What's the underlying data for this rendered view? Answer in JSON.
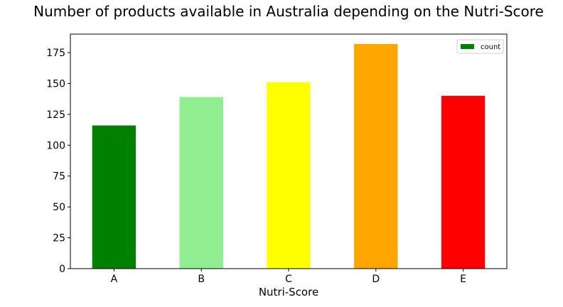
{
  "chart_data": {
    "type": "bar",
    "title": "Number of products available in Australia depending on the Nutri-Score",
    "xlabel": "Nutri-Score",
    "ylabel": "",
    "categories": [
      "A",
      "B",
      "C",
      "D",
      "E"
    ],
    "series": [
      {
        "name": "count",
        "values": [
          116,
          139,
          151,
          182,
          140
        ],
        "colors": [
          "#008000",
          "#90ee90",
          "#ffff00",
          "#ffa500",
          "#ff0000"
        ]
      }
    ],
    "ylim": [
      0,
      190
    ],
    "yticks": [
      0,
      25,
      50,
      75,
      100,
      125,
      150,
      175
    ],
    "grid": false,
    "legend": {
      "placement": "top-right",
      "entries": [
        "count"
      ],
      "swatch_color": "#008000"
    }
  }
}
